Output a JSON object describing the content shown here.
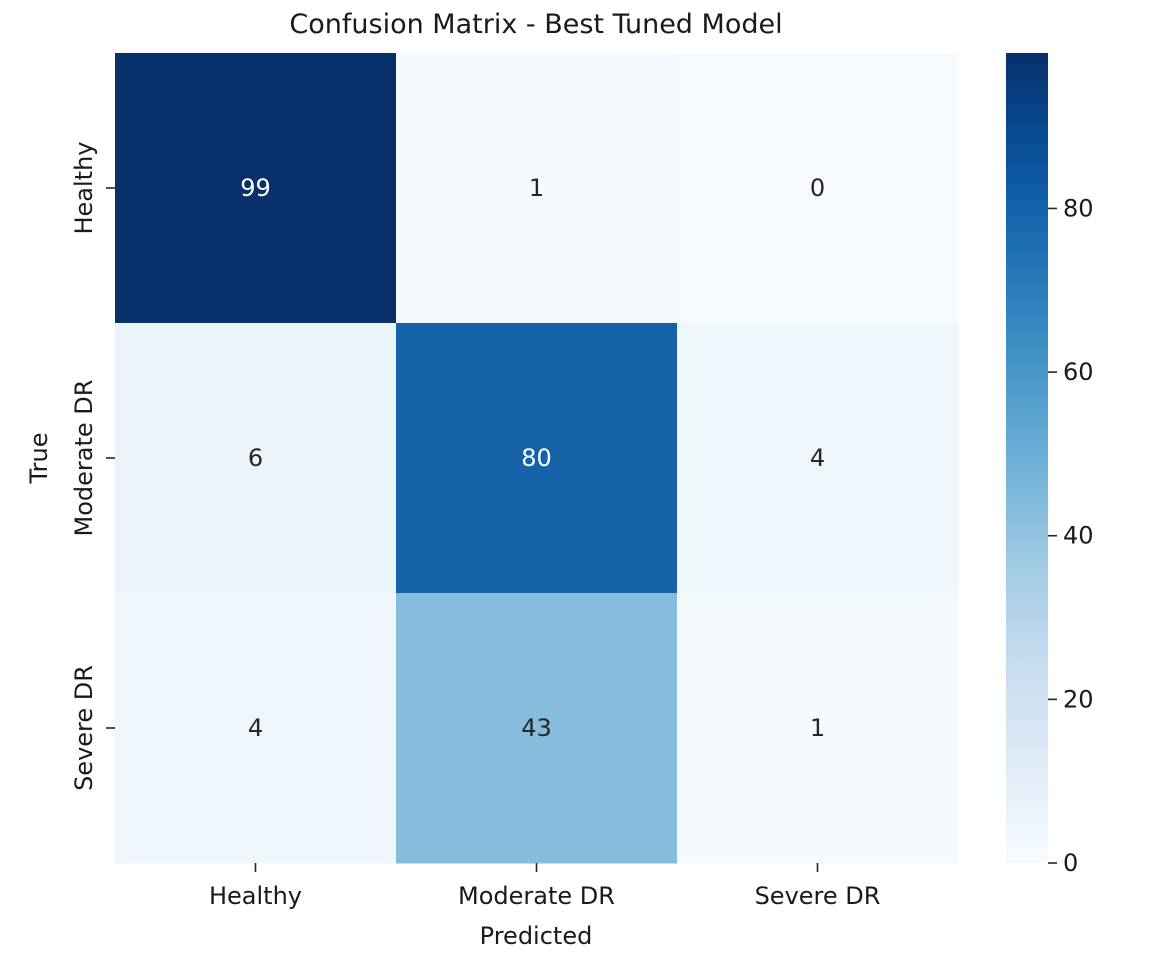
{
  "chart_data": {
    "type": "heatmap",
    "title": "Confusion Matrix - Best Tuned Model",
    "xlabel": "Predicted",
    "ylabel": "True",
    "x_categories": [
      "Healthy",
      "Moderate DR",
      "Severe DR"
    ],
    "y_categories": [
      "Healthy",
      "Moderate DR",
      "Severe DR"
    ],
    "values": [
      [
        99,
        1,
        0
      ],
      [
        6,
        80,
        4
      ],
      [
        4,
        43,
        1
      ]
    ],
    "colormap": "Blues",
    "colorbar": {
      "min": 0,
      "max": 99,
      "ticks": [
        0,
        20,
        40,
        60,
        80
      ],
      "tick_labels": [
        "0",
        "20",
        "40",
        "60",
        "80"
      ]
    },
    "annotations_shown": true,
    "grid": false
  }
}
